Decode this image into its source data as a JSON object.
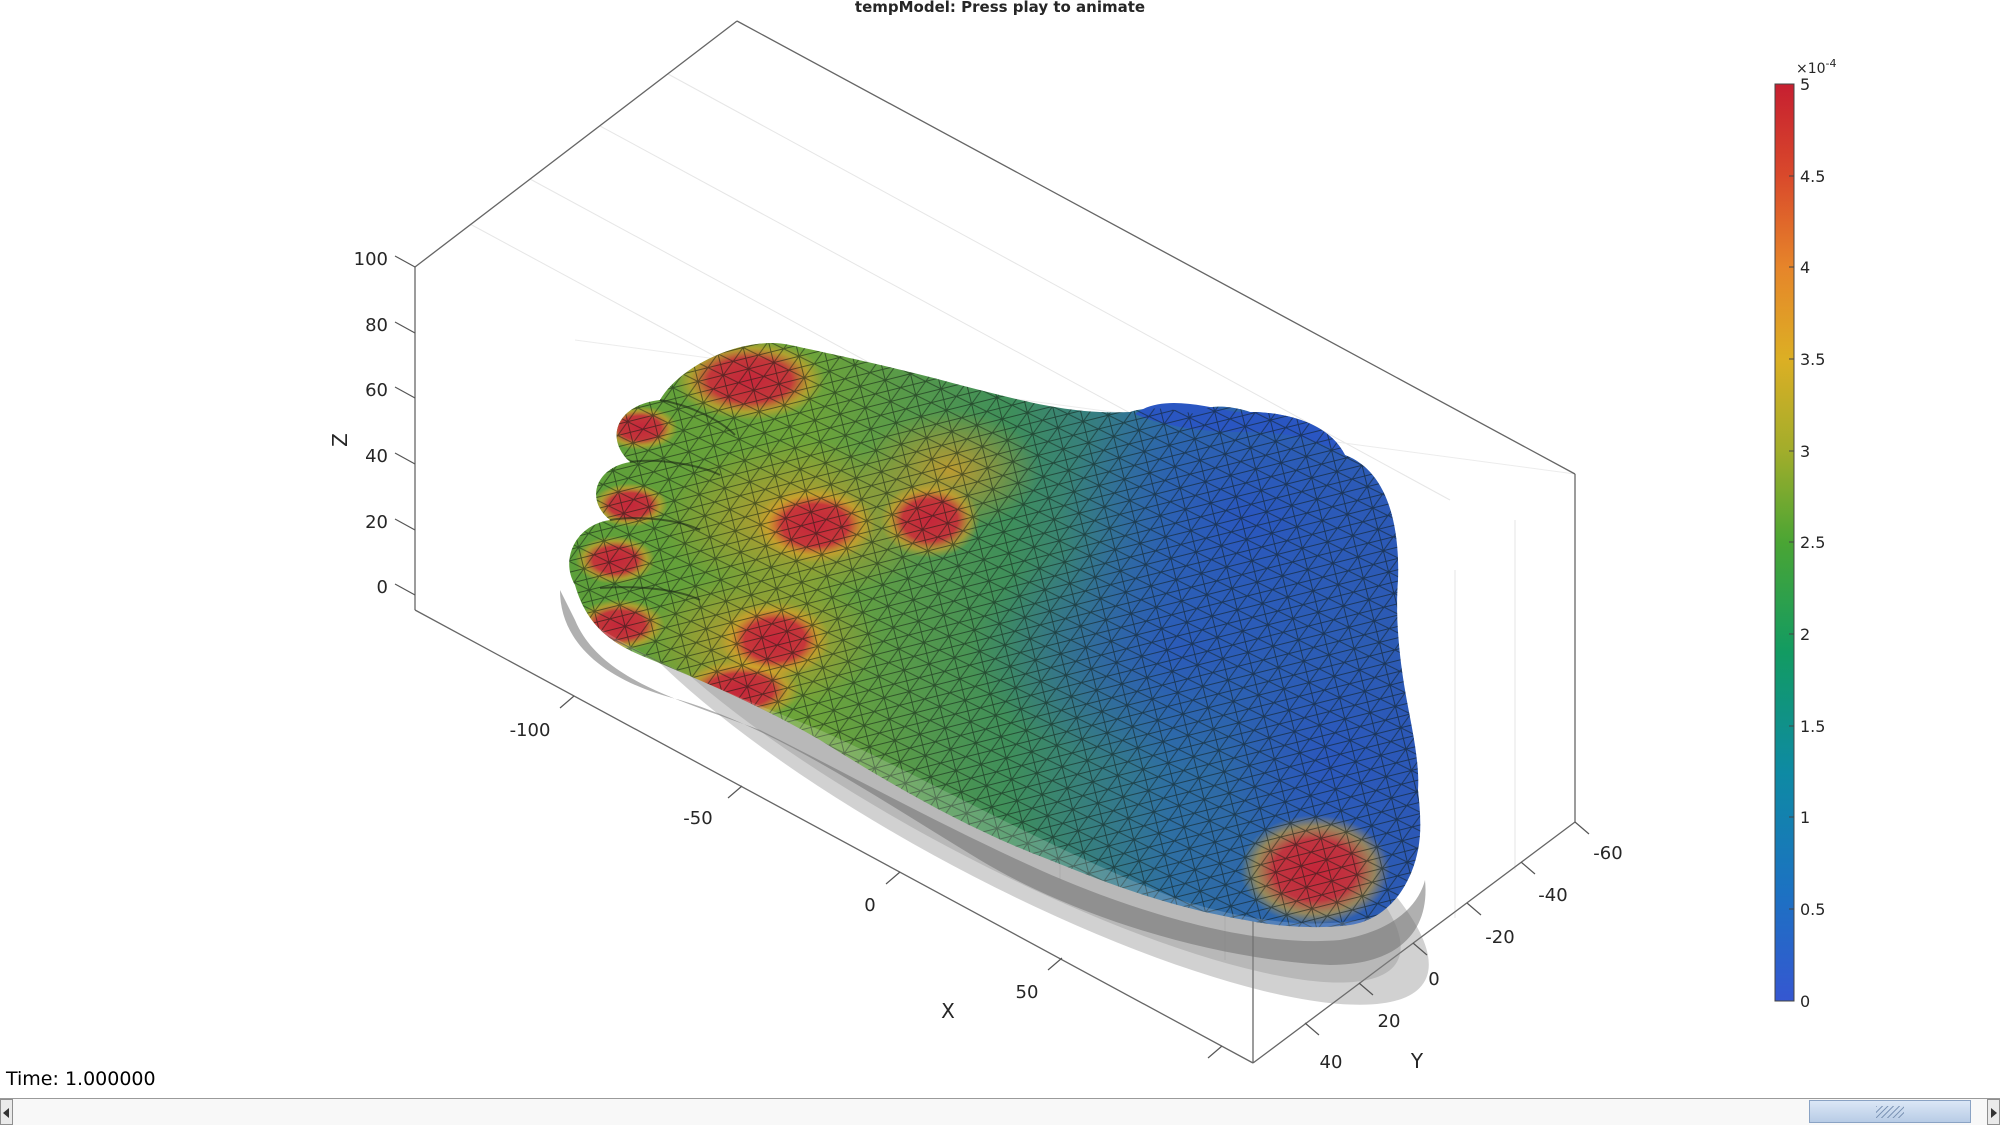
{
  "figure": {
    "title": "tempModel: Press play to animate",
    "time_label": "Time: 1.000000"
  },
  "axes": {
    "x_label": "X",
    "y_label": "Y",
    "z_label": "Z",
    "x_ticks": [
      "-100",
      "-50",
      "0",
      "50"
    ],
    "y_ticks": [
      "-60",
      "-40",
      "-20",
      "0",
      "20",
      "40"
    ],
    "z_ticks": [
      "100",
      "80",
      "60",
      "40",
      "20",
      "0"
    ]
  },
  "colorbar": {
    "exponent_label": "×10",
    "exponent_power": "-4",
    "ticks": [
      "5",
      "4.5",
      "4",
      "3.5",
      "3",
      "2.5",
      "2",
      "1.5",
      "1",
      "0.5",
      "0"
    ],
    "range": [
      0,
      5
    ],
    "colors": [
      "#3b5fcf",
      "#1f7bb5",
      "#13966e",
      "#1d9b3c",
      "#6aa52a",
      "#cfb02b",
      "#e2872a",
      "#d84a2a",
      "#c8202e"
    ]
  },
  "surface": {
    "name": "foot",
    "colormap_low": "#2f58c4",
    "colormap_high": "#c22a3a",
    "shadow_color": "#8c8c8c"
  },
  "scrollbar": {
    "left_arrow": "scroll-left",
    "right_arrow": "scroll-right"
  }
}
